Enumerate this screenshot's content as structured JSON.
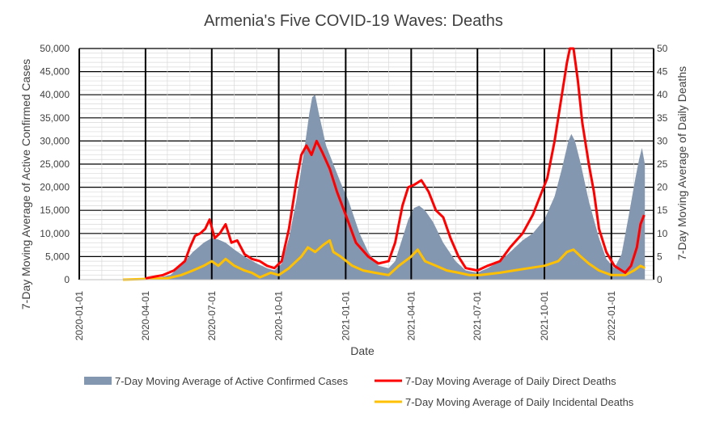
{
  "chart_data": {
    "type": "area+line",
    "title": "Armenia's Five COVID-19 Waves: Deaths",
    "xlabel": "Date",
    "ylabel_left": "7-Day Moving Average of Active Confirmed Cases",
    "ylabel_right": "7-Day Moving Average of Daily Deaths",
    "x_ticks": [
      "2020-01-01",
      "2020-04-01",
      "2020-07-01",
      "2020-10-01",
      "2021-01-01",
      "2021-04-01",
      "2021-07-01",
      "2021-10-01",
      "2022-01-01"
    ],
    "y_left_ticks": [
      "0",
      "5,000",
      "10,000",
      "15,000",
      "20,000",
      "25,000",
      "30,000",
      "35,000",
      "40,000",
      "45,000",
      "50,000"
    ],
    "y_right_ticks": [
      "0",
      "5",
      "10",
      "15",
      "20",
      "25",
      "30",
      "35",
      "40",
      "45",
      "50"
    ],
    "ylim_left": [
      0,
      50000
    ],
    "ylim_right": [
      0,
      50
    ],
    "xlim": [
      "2020-01-01",
      "2022-02-28"
    ],
    "grid": true,
    "legend_position": "bottom",
    "series": [
      {
        "name": "7-Day Moving Average of Active Confirmed Cases",
        "kind": "area",
        "axis": "left",
        "color": "#8497b0",
        "points": [
          [
            "2020-03-01",
            0
          ],
          [
            "2020-04-01",
            200
          ],
          [
            "2020-04-20",
            500
          ],
          [
            "2020-05-05",
            1000
          ],
          [
            "2020-05-20",
            3000
          ],
          [
            "2020-06-05",
            6000
          ],
          [
            "2020-06-20",
            8000
          ],
          [
            "2020-07-01",
            9000
          ],
          [
            "2020-07-10",
            8700
          ],
          [
            "2020-07-20",
            8000
          ],
          [
            "2020-08-01",
            6500
          ],
          [
            "2020-08-15",
            5000
          ],
          [
            "2020-09-01",
            3500
          ],
          [
            "2020-09-15",
            2500
          ],
          [
            "2020-09-25",
            2000
          ],
          [
            "2020-10-05",
            3500
          ],
          [
            "2020-10-15",
            9000
          ],
          [
            "2020-10-25",
            17000
          ],
          [
            "2020-11-05",
            28000
          ],
          [
            "2020-11-12",
            36000
          ],
          [
            "2020-11-16",
            39500
          ],
          [
            "2020-11-20",
            40000
          ],
          [
            "2020-11-25",
            36000
          ],
          [
            "2020-12-05",
            29000
          ],
          [
            "2020-12-15",
            25000
          ],
          [
            "2020-12-25",
            21000
          ],
          [
            "2021-01-05",
            17000
          ],
          [
            "2021-01-20",
            10000
          ],
          [
            "2021-02-01",
            6000
          ],
          [
            "2021-02-15",
            3000
          ],
          [
            "2021-03-01",
            2500
          ],
          [
            "2021-03-10",
            4000
          ],
          [
            "2021-03-20",
            9000
          ],
          [
            "2021-03-28",
            13000
          ],
          [
            "2021-04-05",
            15500
          ],
          [
            "2021-04-12",
            16000
          ],
          [
            "2021-04-20",
            15000
          ],
          [
            "2021-05-01",
            12500
          ],
          [
            "2021-05-15",
            8000
          ],
          [
            "2021-06-01",
            4000
          ],
          [
            "2021-06-15",
            2000
          ],
          [
            "2021-07-01",
            1500
          ],
          [
            "2021-07-15",
            2500
          ],
          [
            "2021-08-01",
            4000
          ],
          [
            "2021-08-15",
            6000
          ],
          [
            "2021-09-01",
            8500
          ],
          [
            "2021-09-15",
            10000
          ],
          [
            "2021-10-01",
            13000
          ],
          [
            "2021-10-15",
            18000
          ],
          [
            "2021-10-25",
            24000
          ],
          [
            "2021-11-03",
            30000
          ],
          [
            "2021-11-07",
            31500
          ],
          [
            "2021-11-12",
            30000
          ],
          [
            "2021-11-20",
            25000
          ],
          [
            "2021-12-01",
            17000
          ],
          [
            "2021-12-15",
            9000
          ],
          [
            "2021-12-25",
            4500
          ],
          [
            "2022-01-05",
            2500
          ],
          [
            "2022-01-15",
            5500
          ],
          [
            "2022-01-25",
            14000
          ],
          [
            "2022-02-03",
            22000
          ],
          [
            "2022-02-08",
            26000
          ],
          [
            "2022-02-12",
            28500
          ],
          [
            "2022-02-16",
            25000
          ]
        ]
      },
      {
        "name": "7-Day Moving Average of Daily Direct Deaths",
        "kind": "line",
        "axis": "right",
        "color": "#ff0000",
        "points": [
          [
            "2020-04-01",
            0.3
          ],
          [
            "2020-04-25",
            1
          ],
          [
            "2020-05-10",
            2
          ],
          [
            "2020-05-25",
            4
          ],
          [
            "2020-06-01",
            7
          ],
          [
            "2020-06-08",
            9.5
          ],
          [
            "2020-06-15",
            10
          ],
          [
            "2020-06-22",
            11
          ],
          [
            "2020-06-28",
            13
          ],
          [
            "2020-07-05",
            9
          ],
          [
            "2020-07-12",
            10
          ],
          [
            "2020-07-20",
            12
          ],
          [
            "2020-07-28",
            8
          ],
          [
            "2020-08-05",
            8.5
          ],
          [
            "2020-08-15",
            5.5
          ],
          [
            "2020-08-25",
            4.5
          ],
          [
            "2020-09-05",
            4
          ],
          [
            "2020-09-15",
            3
          ],
          [
            "2020-09-25",
            2.5
          ],
          [
            "2020-10-05",
            4
          ],
          [
            "2020-10-15",
            11
          ],
          [
            "2020-10-25",
            21
          ],
          [
            "2020-11-01",
            27
          ],
          [
            "2020-11-08",
            29
          ],
          [
            "2020-11-15",
            27
          ],
          [
            "2020-11-22",
            30
          ],
          [
            "2020-11-30",
            27.5
          ],
          [
            "2020-12-10",
            24
          ],
          [
            "2020-12-20",
            19
          ],
          [
            "2021-01-01",
            14
          ],
          [
            "2021-01-15",
            8
          ],
          [
            "2021-02-01",
            5
          ],
          [
            "2021-02-15",
            3.5
          ],
          [
            "2021-03-01",
            4
          ],
          [
            "2021-03-10",
            8
          ],
          [
            "2021-03-20",
            16
          ],
          [
            "2021-03-28",
            20
          ],
          [
            "2021-04-05",
            20.5
          ],
          [
            "2021-04-15",
            21.5
          ],
          [
            "2021-04-25",
            19
          ],
          [
            "2021-05-05",
            15
          ],
          [
            "2021-05-15",
            13.5
          ],
          [
            "2021-05-25",
            9
          ],
          [
            "2021-06-05",
            5
          ],
          [
            "2021-06-15",
            2.5
          ],
          [
            "2021-07-01",
            2
          ],
          [
            "2021-07-15",
            3
          ],
          [
            "2021-08-01",
            4
          ],
          [
            "2021-08-15",
            7
          ],
          [
            "2021-09-01",
            10
          ],
          [
            "2021-09-15",
            14
          ],
          [
            "2021-09-25",
            18
          ],
          [
            "2021-10-05",
            22
          ],
          [
            "2021-10-15",
            30
          ],
          [
            "2021-10-25",
            40
          ],
          [
            "2021-11-01",
            47
          ],
          [
            "2021-11-05",
            50
          ],
          [
            "2021-11-10",
            50
          ],
          [
            "2021-11-16",
            43
          ],
          [
            "2021-11-22",
            34
          ],
          [
            "2021-12-01",
            25
          ],
          [
            "2021-12-08",
            19
          ],
          [
            "2021-12-15",
            11
          ],
          [
            "2021-12-25",
            6
          ],
          [
            "2022-01-05",
            3
          ],
          [
            "2022-01-20",
            1.5
          ],
          [
            "2022-01-28",
            3
          ],
          [
            "2022-02-05",
            7
          ],
          [
            "2022-02-10",
            12
          ],
          [
            "2022-02-15",
            14
          ]
        ]
      },
      {
        "name": "7-Day Moving Average of Daily Incidental Deaths",
        "kind": "line",
        "axis": "right",
        "color": "#ffc000",
        "points": [
          [
            "2020-03-01",
            0
          ],
          [
            "2020-05-01",
            0.3
          ],
          [
            "2020-05-20",
            1
          ],
          [
            "2020-06-05",
            2
          ],
          [
            "2020-06-20",
            3
          ],
          [
            "2020-07-01",
            4
          ],
          [
            "2020-07-10",
            3
          ],
          [
            "2020-07-20",
            4.5
          ],
          [
            "2020-08-01",
            3
          ],
          [
            "2020-08-15",
            2
          ],
          [
            "2020-08-25",
            1.5
          ],
          [
            "2020-09-05",
            0.5
          ],
          [
            "2020-09-20",
            1.5
          ],
          [
            "2020-10-01",
            1
          ],
          [
            "2020-10-15",
            2.5
          ],
          [
            "2020-11-01",
            5
          ],
          [
            "2020-11-10",
            7
          ],
          [
            "2020-11-20",
            6
          ],
          [
            "2020-12-01",
            7.5
          ],
          [
            "2020-12-10",
            8.5
          ],
          [
            "2020-12-15",
            6
          ],
          [
            "2020-12-25",
            5
          ],
          [
            "2021-01-10",
            3
          ],
          [
            "2021-01-25",
            2
          ],
          [
            "2021-02-10",
            1.5
          ],
          [
            "2021-03-01",
            1
          ],
          [
            "2021-03-15",
            3
          ],
          [
            "2021-04-01",
            5
          ],
          [
            "2021-04-10",
            6.5
          ],
          [
            "2021-04-20",
            4
          ],
          [
            "2021-05-05",
            3
          ],
          [
            "2021-05-20",
            2
          ],
          [
            "2021-06-05",
            1.5
          ],
          [
            "2021-06-20",
            1
          ],
          [
            "2021-07-05",
            1
          ],
          [
            "2021-08-01",
            1.5
          ],
          [
            "2021-08-20",
            2
          ],
          [
            "2021-09-10",
            2.5
          ],
          [
            "2021-10-01",
            3
          ],
          [
            "2021-10-20",
            4
          ],
          [
            "2021-11-01",
            6
          ],
          [
            "2021-11-10",
            6.5
          ],
          [
            "2021-11-20",
            5
          ],
          [
            "2021-12-01",
            3.5
          ],
          [
            "2021-12-15",
            2
          ],
          [
            "2022-01-01",
            1
          ],
          [
            "2022-01-20",
            1
          ],
          [
            "2022-02-01",
            2
          ],
          [
            "2022-02-10",
            3
          ],
          [
            "2022-02-16",
            2.5
          ]
        ]
      }
    ]
  },
  "colors": {
    "area": "#8497b0",
    "direct": "#ff0000",
    "incidental": "#ffc000",
    "gridline": "#d9d9d9",
    "major_vline": "#000000",
    "text": "#404040"
  }
}
